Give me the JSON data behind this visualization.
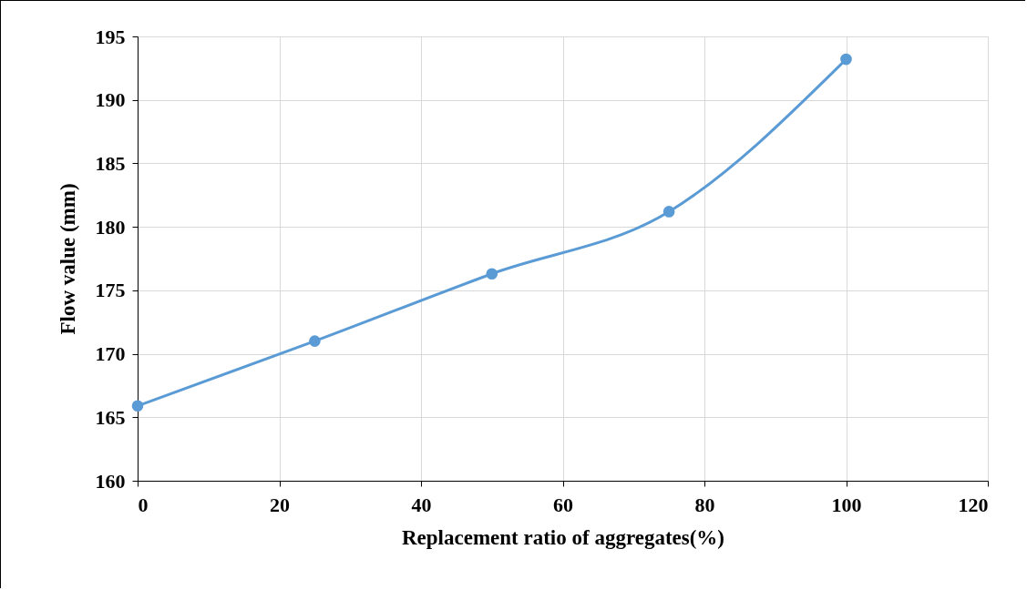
{
  "chart_data": {
    "type": "line",
    "xlabel": "Replacement ratio of aggregates(%)",
    "ylabel": "Flow value (mm)",
    "x": [
      0,
      25,
      50,
      75,
      100
    ],
    "series": [
      {
        "color": "#5b9bd5",
        "values": [
          165.9,
          171.0,
          176.3,
          181.2,
          193.2
        ]
      }
    ],
    "xlim": [
      0,
      120
    ],
    "xticks": [
      0,
      20,
      40,
      60,
      80,
      100,
      120
    ],
    "ylim": [
      160,
      195
    ],
    "yticks": [
      160,
      165,
      170,
      175,
      180,
      185,
      190,
      195
    ],
    "grid": true,
    "marker": "circle",
    "line_style": "solid"
  }
}
